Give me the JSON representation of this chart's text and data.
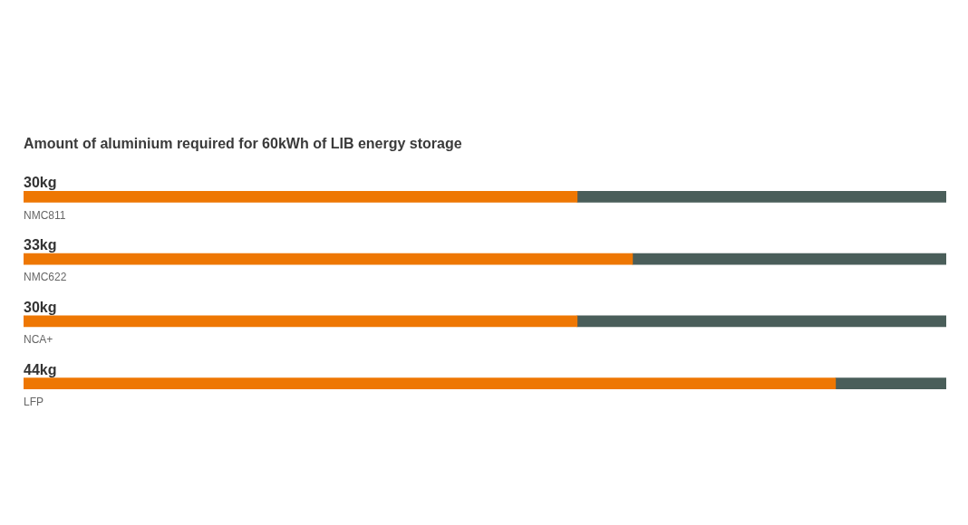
{
  "chart_data": {
    "type": "bar",
    "orientation": "horizontal",
    "stacked": true,
    "title": "Amount of aluminium required for 60kWh of LIB energy storage",
    "categories": [
      "NMC811",
      "NMC622",
      "NCA+",
      "LFP"
    ],
    "series": [
      {
        "color": "#ee7703",
        "values": [
          30,
          33,
          30,
          44
        ],
        "value_labels": [
          "30kg",
          "33kg",
          "30kg",
          "44kg"
        ]
      },
      {
        "color": "#4a5e5a",
        "values": [
          20,
          17,
          20,
          6
        ]
      }
    ],
    "xlim": [
      0,
      50
    ],
    "tick_labels": "y"
  }
}
